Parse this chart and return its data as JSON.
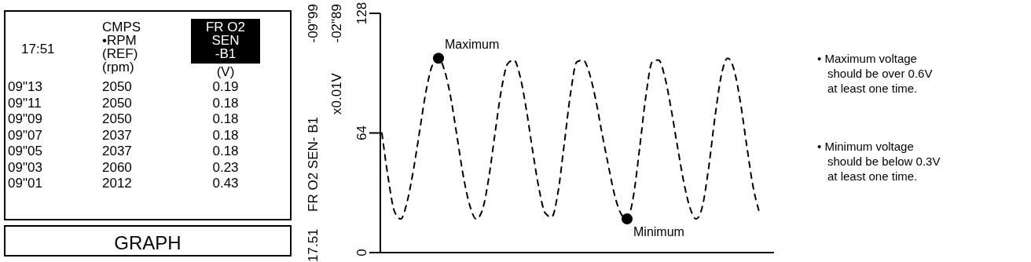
{
  "chart_data": [
    {
      "type": "other",
      "title": "17:51",
      "categories": [
        "09\"13",
        "09\"11",
        "09\"09",
        "09\"07",
        "09\"05",
        "09\"03",
        "09\"01"
      ],
      "series": [
        {
          "name": "CMPS\n•RPM\n(REF)\n(rpm)",
          "values": [
            2050,
            2050,
            2050,
            2037,
            2037,
            2060,
            2012
          ]
        },
        {
          "name": "FR O2\nSEN\n-B1\n(V)",
          "values": [
            0.19,
            0.18,
            0.18,
            0.18,
            0.18,
            0.23,
            0.43
          ]
        }
      ],
      "data_labels": true,
      "annotations": [
        "GRAPH"
      ]
    },
    {
      "type": "line",
      "ylabel": "FR O2 SEN- B1",
      "ylim": [
        0,
        128
      ],
      "yticks": [
        0,
        64,
        128
      ],
      "line_style": "dashed",
      "marker": "none",
      "grid": false,
      "categories": [
        null,
        null,
        null,
        null,
        null,
        null,
        null,
        null,
        null,
        null,
        null,
        null,
        null,
        null,
        null,
        null,
        null,
        null,
        null,
        null,
        null,
        null,
        null,
        null,
        null,
        null,
        null,
        null,
        null,
        null,
        null,
        null,
        null,
        null,
        null,
        null,
        null,
        null,
        null,
        null,
        null,
        null,
        null,
        null,
        null,
        null,
        null,
        null,
        null,
        null,
        null,
        null,
        null,
        null,
        null,
        null,
        null,
        null,
        null,
        null,
        null
      ],
      "series": [
        {
          "color": "#000000",
          "values": [
            64,
            40,
            22,
            18,
            27,
            44,
            65,
            86,
            100,
            104,
            97,
            82,
            61,
            40,
            25,
            18,
            23,
            40,
            64,
            87,
            101,
            103,
            94,
            76,
            54,
            34,
            21,
            19,
            32,
            58,
            85,
            102,
            103,
            96,
            82,
            64,
            47,
            31,
            21,
            18,
            30,
            56,
            84,
            102,
            103,
            94,
            77,
            57,
            38,
            24,
            18,
            25,
            46,
            73,
            95,
            104,
            98,
            81,
            58,
            36,
            22
          ]
        },
        {
          "type": "scatter",
          "marker": "circle",
          "color": "#000000",
          "values": [
            null,
            null,
            null,
            null,
            null,
            null,
            null,
            null,
            null,
            104,
            null,
            null,
            null,
            null,
            null,
            null,
            null,
            null,
            null,
            null,
            null,
            null,
            null,
            null,
            null,
            null,
            null,
            null,
            null,
            null,
            null,
            null,
            null,
            null,
            null,
            null,
            null,
            null,
            null,
            18,
            null,
            null,
            null,
            null,
            null,
            null,
            null,
            null,
            null,
            null,
            null,
            null,
            null,
            null,
            null,
            null,
            null,
            null,
            null,
            null,
            null
          ]
        }
      ],
      "annotations": [
        "Maximum",
        "Minimum",
        "x0.01V",
        "17.51",
        "-09\"99",
        "-02\"89",
        "• Maximum voltage should be over 0.6V at least one time.",
        "• Minimum voltage should be below 0.3V at least one time."
      ]
    }
  ]
}
